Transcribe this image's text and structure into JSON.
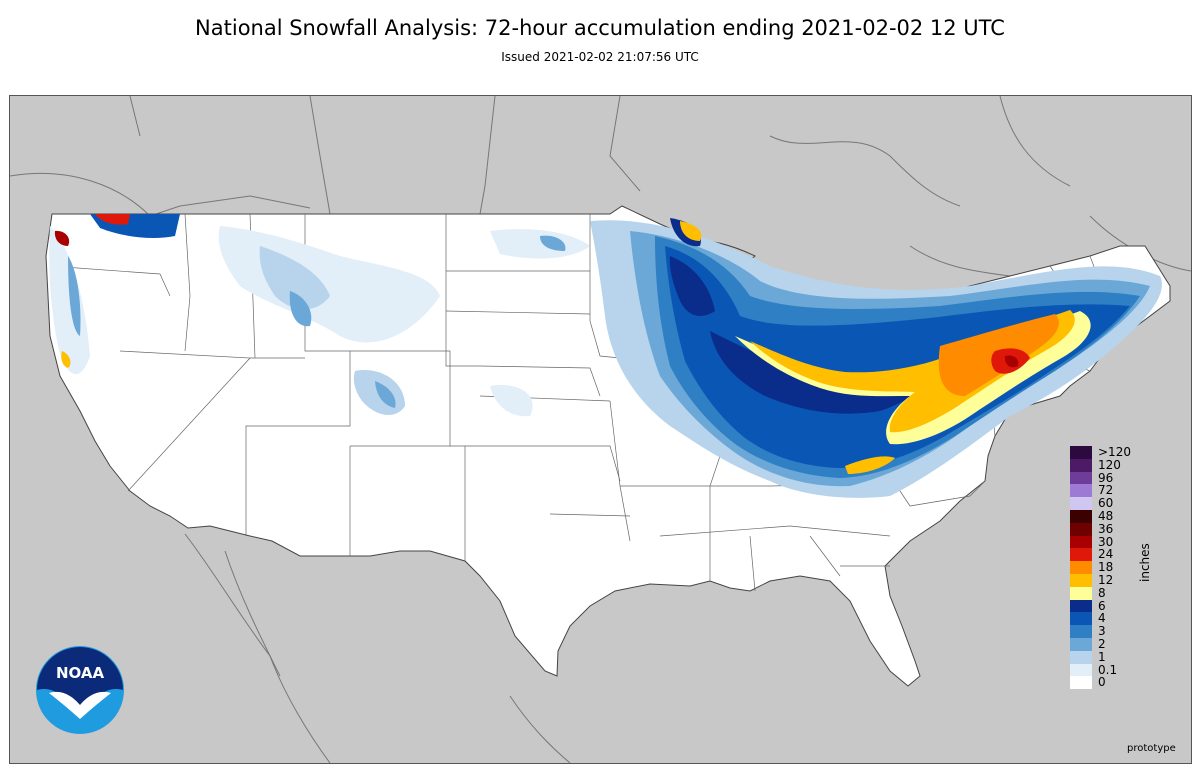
{
  "header": {
    "title": "National Snowfall Analysis: 72-hour accumulation ending 2021-02-02 12 UTC",
    "issued": "Issued 2021-02-02 21:07:56 UTC"
  },
  "map": {
    "land_outside_color": "#c8c8c8",
    "land_us_color": "#ffffff",
    "boundary_color": "#666666"
  },
  "legend": {
    "unit": "inches",
    "bins": [
      {
        "label": ">120",
        "color": "#2c0a3f"
      },
      {
        "label": "120",
        "color": "#4d1a66"
      },
      {
        "label": "96",
        "color": "#6e3c99"
      },
      {
        "label": "72",
        "color": "#9d7ad4"
      },
      {
        "label": "60",
        "color": "#cfc6f2"
      },
      {
        "label": "48",
        "color": "#3b0000"
      },
      {
        "label": "36",
        "color": "#6e0000"
      },
      {
        "label": "30",
        "color": "#a80000"
      },
      {
        "label": "24",
        "color": "#e0180a"
      },
      {
        "label": "18",
        "color": "#ff8c00"
      },
      {
        "label": "12",
        "color": "#ffbf00"
      },
      {
        "label": "8",
        "color": "#ffff99"
      },
      {
        "label": "6",
        "color": "#0a2d8c"
      },
      {
        "label": "4",
        "color": "#0a56b4"
      },
      {
        "label": "3",
        "color": "#2e7fc4"
      },
      {
        "label": "2",
        "color": "#6ba8d8"
      },
      {
        "label": "1",
        "color": "#b7d4ec"
      },
      {
        "label": "0.1",
        "color": "#e2eef8"
      },
      {
        "label": "0",
        "color": "#ffffff"
      }
    ]
  },
  "logo": {
    "text": "NOAA"
  },
  "footer": {
    "note": "prototype"
  }
}
